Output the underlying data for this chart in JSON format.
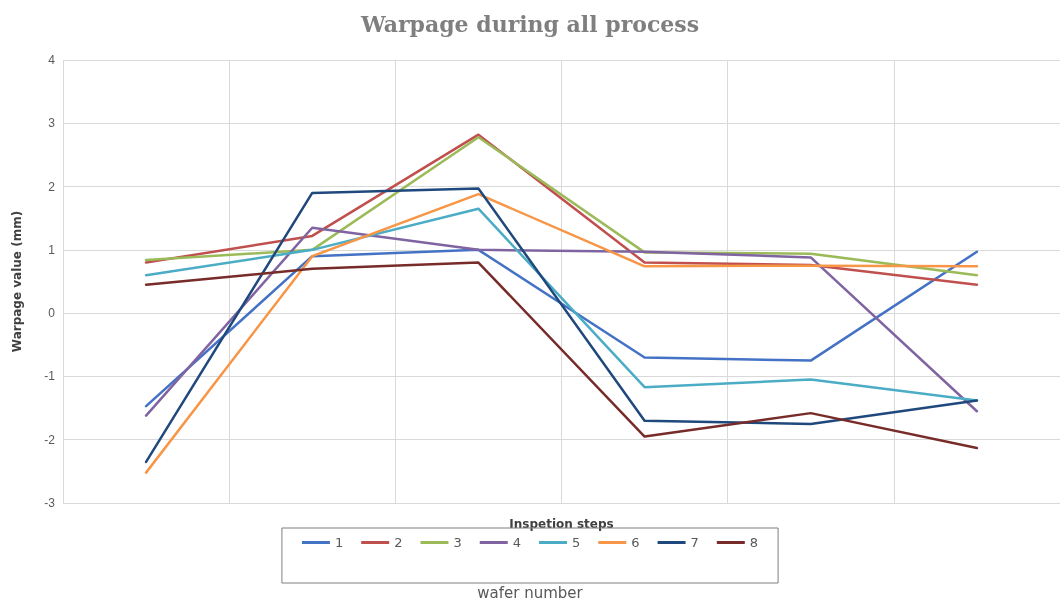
{
  "chart_data": {
    "type": "line",
    "title": "Warpage during all process",
    "xlabel": "Inspetion steps",
    "ylabel": "Warpage value (mm)",
    "legend_title": "wafer number",
    "categories": [
      null,
      null,
      null,
      null,
      null,
      null
    ],
    "series": [
      {
        "name": "1",
        "color": "#4472c4",
        "values": [
          -1.47,
          0.9,
          1.0,
          -0.7,
          -0.75,
          0.97
        ]
      },
      {
        "name": "2",
        "color": "#c0504d",
        "values": [
          0.8,
          1.22,
          2.82,
          0.8,
          0.76,
          0.45
        ]
      },
      {
        "name": "3",
        "color": "#9bbb59",
        "values": [
          0.84,
          1.0,
          2.78,
          0.96,
          0.94,
          0.6
        ]
      },
      {
        "name": "4",
        "color": "#8064a2",
        "values": [
          -1.62,
          1.35,
          1.0,
          0.97,
          0.88,
          -1.55
        ]
      },
      {
        "name": "5",
        "color": "#4bacc6",
        "values": [
          0.6,
          1.0,
          1.65,
          -1.17,
          -1.05,
          -1.38
        ]
      },
      {
        "name": "6",
        "color": "#f79646",
        "values": [
          -2.52,
          0.9,
          1.88,
          0.74,
          0.75,
          0.74
        ]
      },
      {
        "name": "7",
        "color": "#1f497d",
        "values": [
          -2.35,
          1.9,
          1.97,
          -1.7,
          -1.75,
          -1.38
        ]
      },
      {
        "name": "8",
        "color": "#772c2a",
        "values": [
          0.45,
          0.7,
          0.8,
          -1.95,
          -1.58,
          -2.13
        ]
      }
    ],
    "ylim": [
      -3,
      4
    ],
    "yticks": [
      -3,
      -2,
      -1,
      0,
      1,
      2,
      3,
      4
    ],
    "grid": true,
    "legend": "bottom",
    "marker": "none",
    "line_style": "solid"
  }
}
